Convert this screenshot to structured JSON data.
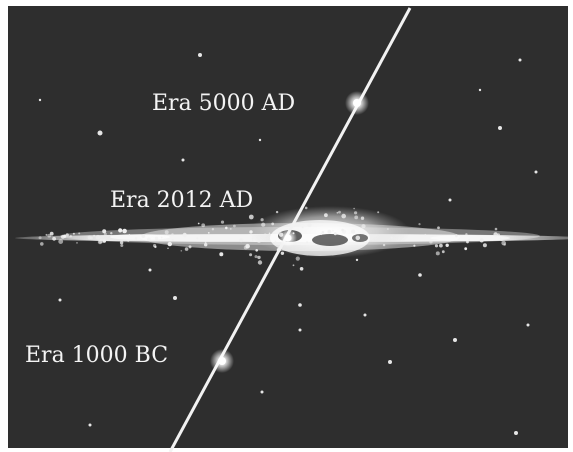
{
  "diagram": {
    "background_color": "#2e2e2e",
    "trajectory_color": "#f2f2f2",
    "eras": [
      {
        "label": "Era 5000 AD"
      },
      {
        "label": "Era 2012 AD"
      },
      {
        "label": "Era 1000 BC"
      }
    ]
  }
}
